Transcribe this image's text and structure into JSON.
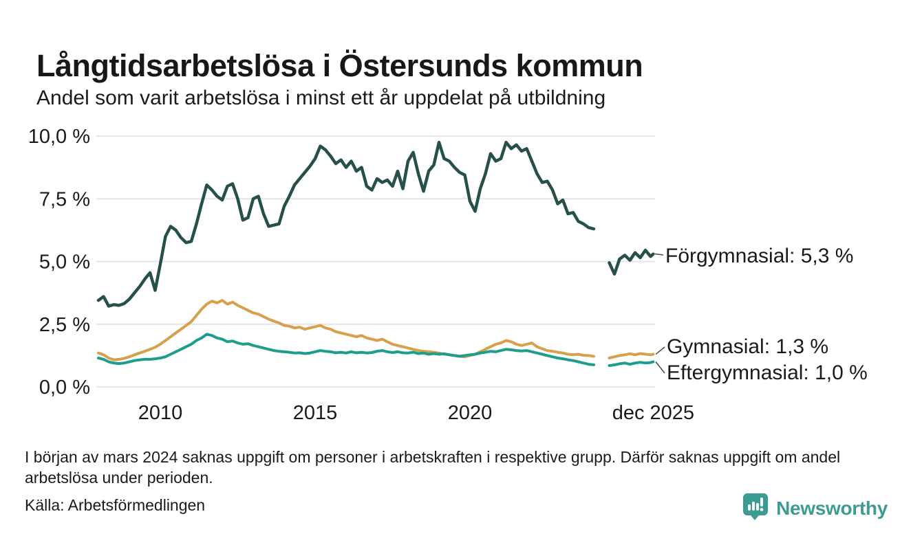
{
  "header": {
    "title": "Långtidsarbetslösa i Östersunds kommun",
    "subtitle": "Andel som varit arbetslösa i minst ett år uppdelat på utbildning"
  },
  "footer": {
    "footnote": "I början av mars 2024 saknas uppgift om personer i arbetskraften i respektive grupp. Därför saknas uppgift om andel arbetslösa under perioden.",
    "source": "Källa: Arbetsförmedlingen",
    "brand": "Newsworthy"
  },
  "colors": {
    "forgymnasial": "#26504a",
    "gymnasial": "#d6a04c",
    "eftergymnasial": "#1e9d8c",
    "gridline": "#e7e7ea",
    "text": "#1a1a1a",
    "connector": "#4a4a4a",
    "brand_teal": "#3c9b93"
  },
  "chart_data": {
    "type": "line",
    "title": "Långtidsarbetslösa i Östersunds kommun",
    "subtitle": "Andel som varit arbetslösa i minst ett år uppdelat på utbildning",
    "unit": "%",
    "xlim": [
      2008.0,
      2025.92
    ],
    "ylim": [
      0,
      10.3
    ],
    "grid": true,
    "legend_position": "right-direct-labels",
    "x_start": 2008.0,
    "x_step_months": 2,
    "final_x": 2025.92,
    "gap_period": "mars 2024 – juni 2024",
    "y_ticks": [
      {
        "label": "10,0 %",
        "value": 10
      },
      {
        "label": "7,5 %",
        "value": 7.5
      },
      {
        "label": "5,0 %",
        "value": 5
      },
      {
        "label": "2,5 %",
        "value": 2.5
      },
      {
        "label": "0,0 %",
        "value": 0
      }
    ],
    "x_ticks": [
      {
        "label": "2010",
        "year": 2010
      },
      {
        "label": "2015",
        "year": 2015
      },
      {
        "label": "2020",
        "year": 2020
      },
      {
        "label": "dec 2025",
        "year": 2025.92
      }
    ],
    "series": [
      {
        "name": "Förgymnasial",
        "end_value": 5.3,
        "end_label": "Förgymnasial: 5,3 %",
        "color": "#26504a",
        "values": [
          3.45,
          3.6,
          3.22,
          3.28,
          3.25,
          3.32,
          3.5,
          3.75,
          4.0,
          4.3,
          4.55,
          3.85,
          4.9,
          6.0,
          6.4,
          6.25,
          5.95,
          5.75,
          5.8,
          6.5,
          7.3,
          8.05,
          7.85,
          7.6,
          7.45,
          8.0,
          8.1,
          7.5,
          6.65,
          6.75,
          7.5,
          7.6,
          6.9,
          6.4,
          6.45,
          6.5,
          7.2,
          7.6,
          8.05,
          8.3,
          8.55,
          8.8,
          9.1,
          9.6,
          9.45,
          9.2,
          8.9,
          9.05,
          8.75,
          9.0,
          8.6,
          8.75,
          8.0,
          7.85,
          8.3,
          8.15,
          8.25,
          8.0,
          8.6,
          7.9,
          9.0,
          9.35,
          8.5,
          7.8,
          8.6,
          8.85,
          9.75,
          9.1,
          9.0,
          8.75,
          8.55,
          8.45,
          7.4,
          7.0,
          7.9,
          8.5,
          9.3,
          9.0,
          9.1,
          9.75,
          9.5,
          9.65,
          9.4,
          9.5,
          9.0,
          8.5,
          8.15,
          8.2,
          7.85,
          7.3,
          7.45,
          6.9,
          6.95,
          6.6,
          6.5,
          6.35,
          6.3,
          null,
          null,
          4.95,
          4.5,
          5.1,
          5.25,
          5.05,
          5.35,
          5.15,
          5.45,
          5.2,
          5.3
        ]
      },
      {
        "name": "Gymnasial",
        "end_value": 1.3,
        "end_label": "Gymnasial: 1,3 %",
        "color": "#d6a04c",
        "values": [
          1.35,
          1.28,
          1.15,
          1.08,
          1.1,
          1.14,
          1.2,
          1.28,
          1.35,
          1.42,
          1.5,
          1.58,
          1.7,
          1.85,
          2.0,
          2.15,
          2.3,
          2.45,
          2.6,
          2.85,
          3.1,
          3.3,
          3.42,
          3.35,
          3.45,
          3.3,
          3.38,
          3.25,
          3.15,
          3.05,
          2.95,
          2.9,
          2.8,
          2.7,
          2.62,
          2.55,
          2.45,
          2.42,
          2.35,
          2.38,
          2.3,
          2.35,
          2.4,
          2.45,
          2.35,
          2.3,
          2.2,
          2.15,
          2.1,
          2.05,
          2.0,
          2.05,
          1.95,
          1.9,
          1.85,
          1.9,
          1.8,
          1.7,
          1.65,
          1.6,
          1.55,
          1.5,
          1.45,
          1.42,
          1.4,
          1.38,
          1.35,
          1.3,
          1.28,
          1.25,
          1.22,
          1.2,
          1.25,
          1.3,
          1.4,
          1.5,
          1.6,
          1.7,
          1.75,
          1.85,
          1.8,
          1.7,
          1.65,
          1.7,
          1.75,
          1.6,
          1.52,
          1.45,
          1.42,
          1.38,
          1.35,
          1.3,
          1.28,
          1.3,
          1.26,
          1.25,
          1.22,
          null,
          null,
          1.15,
          1.2,
          1.25,
          1.28,
          1.32,
          1.28,
          1.33,
          1.3,
          1.28,
          1.3
        ]
      },
      {
        "name": "Eftergymnasial",
        "end_value": 1.0,
        "end_label": "Eftergymnasial: 1,0 %",
        "color": "#1e9d8c",
        "values": [
          1.15,
          1.1,
          1.0,
          0.95,
          0.93,
          0.95,
          1.0,
          1.05,
          1.08,
          1.1,
          1.1,
          1.12,
          1.15,
          1.2,
          1.3,
          1.4,
          1.5,
          1.6,
          1.7,
          1.85,
          1.95,
          2.1,
          2.05,
          1.95,
          1.9,
          1.8,
          1.83,
          1.75,
          1.7,
          1.72,
          1.65,
          1.6,
          1.55,
          1.5,
          1.45,
          1.42,
          1.4,
          1.38,
          1.35,
          1.36,
          1.33,
          1.35,
          1.4,
          1.45,
          1.42,
          1.4,
          1.36,
          1.38,
          1.35,
          1.4,
          1.36,
          1.38,
          1.35,
          1.37,
          1.42,
          1.45,
          1.4,
          1.37,
          1.4,
          1.36,
          1.35,
          1.38,
          1.33,
          1.35,
          1.3,
          1.33,
          1.3,
          1.32,
          1.28,
          1.25,
          1.22,
          1.25,
          1.28,
          1.3,
          1.35,
          1.38,
          1.42,
          1.4,
          1.45,
          1.5,
          1.48,
          1.45,
          1.43,
          1.45,
          1.4,
          1.35,
          1.3,
          1.25,
          1.2,
          1.15,
          1.12,
          1.08,
          1.05,
          1.0,
          0.95,
          0.9,
          0.88,
          null,
          null,
          0.85,
          0.88,
          0.92,
          0.95,
          0.9,
          0.95,
          0.98,
          0.95,
          0.97,
          1.0
        ]
      }
    ]
  }
}
